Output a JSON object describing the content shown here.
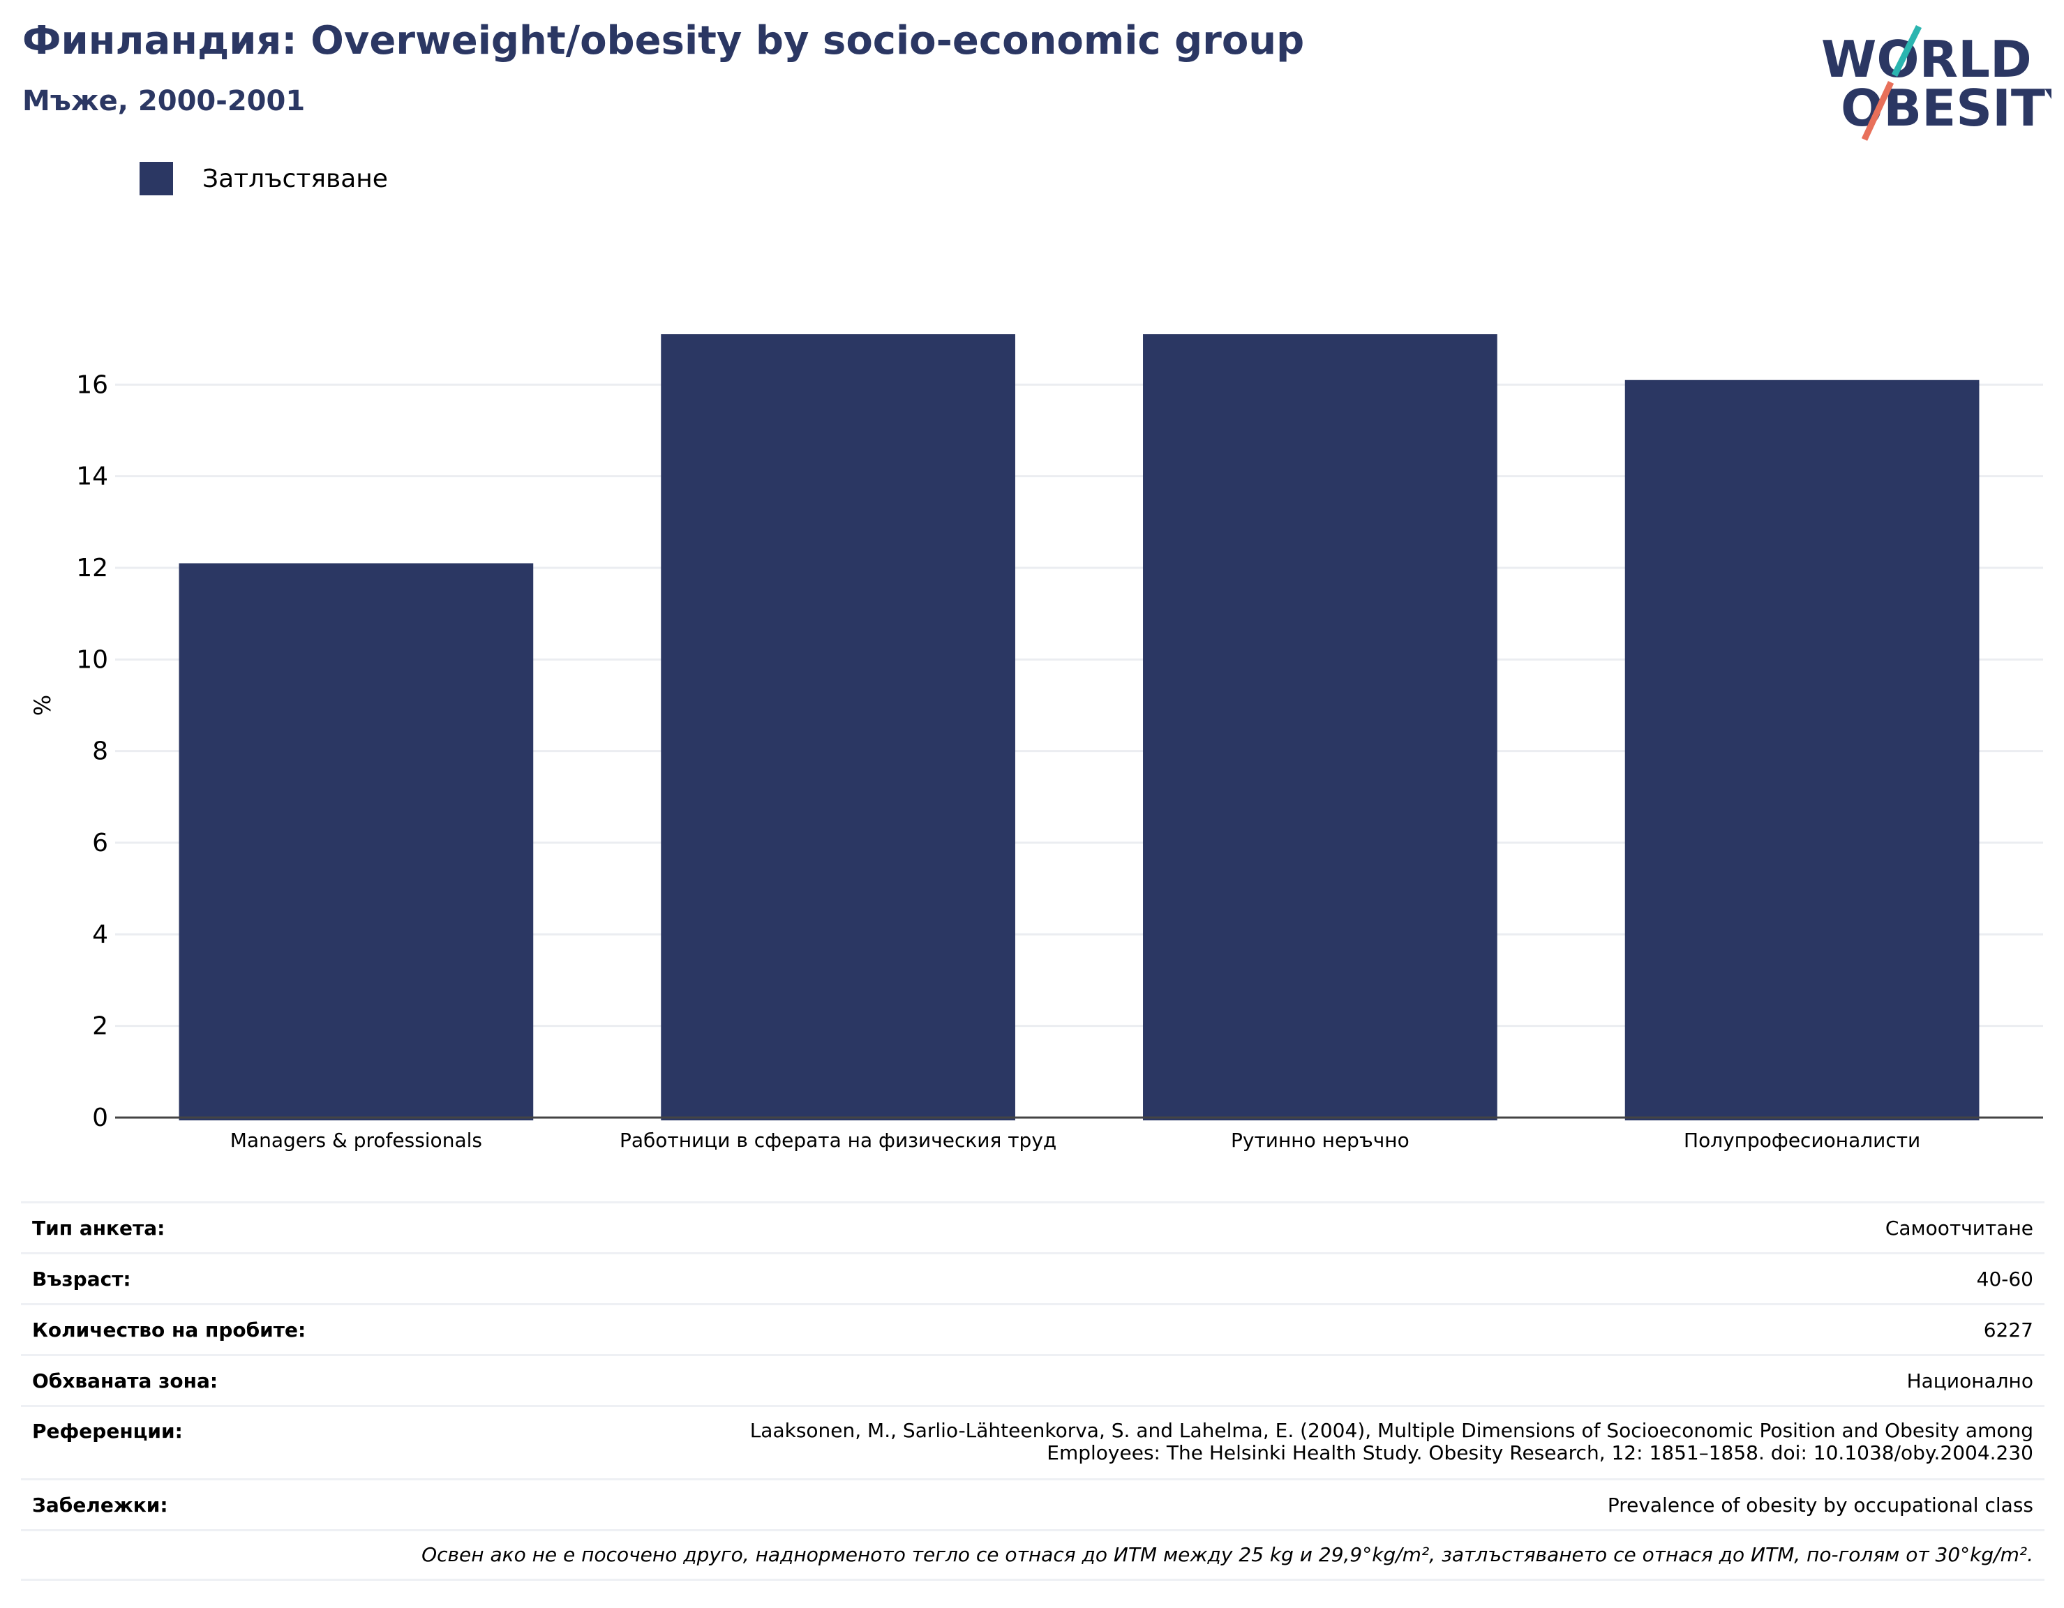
{
  "header": {
    "title": "Финландия: Overweight/obesity by socio-economic group",
    "subtitle": "Мъже, 2000-2001"
  },
  "logo": {
    "line1": "WORLD",
    "line2": "OBESITY",
    "text_color": "#2b3763",
    "accent_teal": "#2bb5b0",
    "accent_coral": "#e8705a"
  },
  "chart_data": {
    "type": "bar",
    "categories": [
      "Managers & professionals",
      "Работници в сферата на физическия труд",
      "Рутинно неръчно",
      "Полупрофесионалисти"
    ],
    "series": [
      {
        "name": "Затлъстяване",
        "values": [
          12.1,
          17.1,
          17.1,
          16.1
        ],
        "color": "#2b3763"
      }
    ],
    "ylabel": "%",
    "ylim": [
      0,
      18
    ],
    "yticks": [
      0,
      2,
      4,
      6,
      8,
      10,
      12,
      14,
      16
    ],
    "grid": true,
    "legend_position": "top-left"
  },
  "meta": {
    "rows": [
      {
        "key": "Тип анкета:",
        "value": "Самоотчитане"
      },
      {
        "key": "Възраст:",
        "value": "40-60"
      },
      {
        "key": "Количество на пробите:",
        "value": "6227"
      },
      {
        "key": "Обхваната зона:",
        "value": "Национално"
      },
      {
        "key": "Референции:",
        "value": "Laaksonen, M., Sarlio-Lähteenkorva, S. and Lahelma, E. (2004), Multiple Dimensions of Socioeconomic Position and Obesity among Employees: The Helsinki Health Study. Obesity Research, 12: 1851–1858. doi: 10.1038/oby.2004.230"
      },
      {
        "key": "Забележки:",
        "value": "Prevalence of obesity by occupational class"
      }
    ],
    "note": "Освен ако не е посочено друго, наднорменото тегло се отнася до ИТМ между 25 kg и 29,9°kg/m², затлъстяването се отнася до ИТМ, по-голям от 30°kg/m²."
  }
}
